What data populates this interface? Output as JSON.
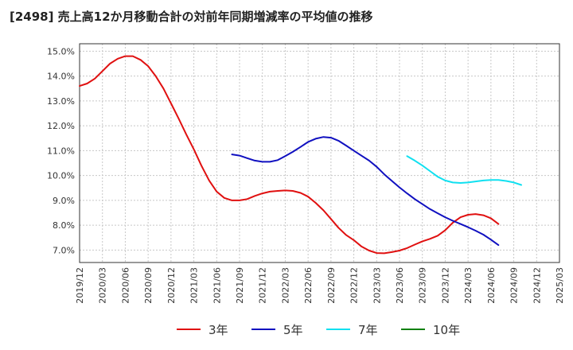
{
  "chart_data": {
    "type": "line",
    "title": "[2498]  売上高12か月移動合計の対前年同期増減率の平均値の推移",
    "xlabel": "",
    "ylabel": "",
    "ylim": [
      6.5,
      15.3
    ],
    "yticks": [
      7.0,
      8.0,
      9.0,
      10.0,
      11.0,
      12.0,
      13.0,
      14.0,
      15.0
    ],
    "ytick_labels": [
      "7.0%",
      "8.0%",
      "9.0%",
      "10.0%",
      "11.0%",
      "12.0%",
      "13.0%",
      "14.0%",
      "15.0%"
    ],
    "x_categories": [
      "2019/12",
      "2020/03",
      "2020/06",
      "2020/09",
      "2020/12",
      "2021/03",
      "2021/06",
      "2021/09",
      "2021/12",
      "2022/03",
      "2022/06",
      "2022/09",
      "2022/12",
      "2023/03",
      "2023/06",
      "2023/09",
      "2023/12",
      "2024/03",
      "2024/06",
      "2024/09",
      "2024/12",
      "2025/03"
    ],
    "grid": true,
    "legend_position": "bottom",
    "series": [
      {
        "name": "3年",
        "color": "#e01010",
        "points": [
          [
            0,
            13.6
          ],
          [
            0.33,
            13.7
          ],
          [
            0.67,
            13.9
          ],
          [
            1,
            14.2
          ],
          [
            1.33,
            14.5
          ],
          [
            1.67,
            14.7
          ],
          [
            2,
            14.8
          ],
          [
            2.33,
            14.8
          ],
          [
            2.67,
            14.65
          ],
          [
            3,
            14.4
          ],
          [
            3.33,
            14.0
          ],
          [
            3.67,
            13.5
          ],
          [
            4,
            12.9
          ],
          [
            4.33,
            12.3
          ],
          [
            4.67,
            11.65
          ],
          [
            5,
            11.05
          ],
          [
            5.33,
            10.4
          ],
          [
            5.67,
            9.8
          ],
          [
            6,
            9.35
          ],
          [
            6.33,
            9.1
          ],
          [
            6.67,
            9.0
          ],
          [
            7,
            9.0
          ],
          [
            7.33,
            9.05
          ],
          [
            7.67,
            9.18
          ],
          [
            8,
            9.28
          ],
          [
            8.33,
            9.35
          ],
          [
            8.67,
            9.38
          ],
          [
            9,
            9.4
          ],
          [
            9.33,
            9.38
          ],
          [
            9.67,
            9.3
          ],
          [
            10,
            9.15
          ],
          [
            10.33,
            8.9
          ],
          [
            10.67,
            8.6
          ],
          [
            11,
            8.25
          ],
          [
            11.33,
            7.9
          ],
          [
            11.67,
            7.6
          ],
          [
            12,
            7.4
          ],
          [
            12.33,
            7.15
          ],
          [
            12.67,
            6.98
          ],
          [
            13,
            6.88
          ],
          [
            13.33,
            6.87
          ],
          [
            13.67,
            6.92
          ],
          [
            14,
            6.98
          ],
          [
            14.33,
            7.08
          ],
          [
            14.67,
            7.22
          ],
          [
            15,
            7.35
          ],
          [
            15.33,
            7.45
          ],
          [
            15.67,
            7.58
          ],
          [
            16,
            7.8
          ],
          [
            16.33,
            8.1
          ],
          [
            16.67,
            8.32
          ],
          [
            17,
            8.42
          ],
          [
            17.33,
            8.45
          ],
          [
            17.67,
            8.4
          ],
          [
            18,
            8.28
          ],
          [
            18.33,
            8.05
          ]
        ]
      },
      {
        "name": "5年",
        "color": "#1010c0",
        "points": [
          [
            6.67,
            10.85
          ],
          [
            7,
            10.8
          ],
          [
            7.33,
            10.7
          ],
          [
            7.67,
            10.6
          ],
          [
            8,
            10.55
          ],
          [
            8.33,
            10.55
          ],
          [
            8.67,
            10.62
          ],
          [
            9,
            10.78
          ],
          [
            9.33,
            10.95
          ],
          [
            9.67,
            11.15
          ],
          [
            10,
            11.35
          ],
          [
            10.33,
            11.48
          ],
          [
            10.67,
            11.55
          ],
          [
            11,
            11.52
          ],
          [
            11.33,
            11.4
          ],
          [
            11.67,
            11.2
          ],
          [
            12,
            11.0
          ],
          [
            12.33,
            10.8
          ],
          [
            12.67,
            10.6
          ],
          [
            13,
            10.35
          ],
          [
            13.33,
            10.05
          ],
          [
            13.67,
            9.78
          ],
          [
            14,
            9.52
          ],
          [
            14.33,
            9.28
          ],
          [
            14.67,
            9.05
          ],
          [
            15,
            8.85
          ],
          [
            15.33,
            8.65
          ],
          [
            15.67,
            8.48
          ],
          [
            16,
            8.32
          ],
          [
            16.33,
            8.18
          ],
          [
            16.67,
            8.05
          ],
          [
            17,
            7.92
          ],
          [
            17.33,
            7.78
          ],
          [
            17.67,
            7.62
          ],
          [
            18,
            7.42
          ],
          [
            18.33,
            7.2
          ]
        ]
      },
      {
        "name": "7年",
        "color": "#10e0f0",
        "points": [
          [
            14.33,
            10.78
          ],
          [
            14.67,
            10.6
          ],
          [
            15,
            10.4
          ],
          [
            15.33,
            10.18
          ],
          [
            15.67,
            9.95
          ],
          [
            16,
            9.8
          ],
          [
            16.33,
            9.72
          ],
          [
            16.67,
            9.7
          ],
          [
            17,
            9.72
          ],
          [
            17.33,
            9.76
          ],
          [
            17.67,
            9.8
          ],
          [
            18,
            9.82
          ],
          [
            18.33,
            9.82
          ],
          [
            18.67,
            9.78
          ],
          [
            19,
            9.72
          ],
          [
            19.33,
            9.62
          ]
        ]
      },
      {
        "name": "10年",
        "color": "#108010",
        "points": []
      }
    ]
  }
}
